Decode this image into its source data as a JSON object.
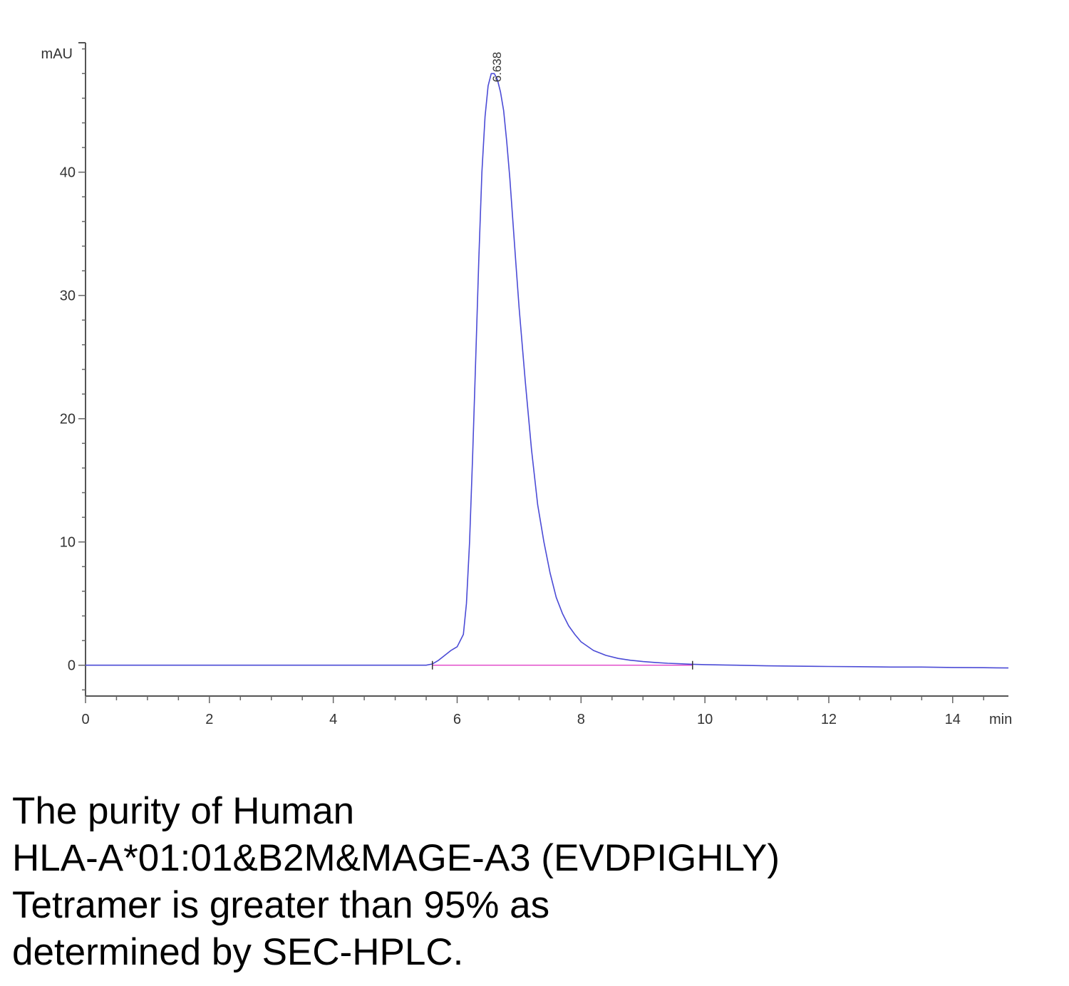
{
  "chart_data": {
    "type": "line",
    "title": "",
    "xlabel": "",
    "ylabel": "",
    "x_unit": "min",
    "y_unit": "mAU",
    "xlim": [
      0,
      14.9
    ],
    "ylim": [
      -2.5,
      50.5
    ],
    "x_ticks": [
      0,
      2,
      4,
      6,
      8,
      10,
      12,
      14
    ],
    "y_ticks": [
      0,
      10,
      20,
      30,
      40
    ],
    "grid": false,
    "legend": "none",
    "peak_annotation": {
      "x": 6.638,
      "label": "6.638"
    },
    "series": [
      {
        "color": "#4b4bd6",
        "x": [
          0,
          1,
          2,
          3,
          4,
          5,
          5.5,
          5.6,
          5.7,
          5.8,
          5.9,
          6.0,
          6.1,
          6.15,
          6.2,
          6.25,
          6.3,
          6.35,
          6.4,
          6.45,
          6.5,
          6.55,
          6.6,
          6.65,
          6.7,
          6.75,
          6.8,
          6.85,
          6.9,
          6.95,
          7.0,
          7.1,
          7.2,
          7.3,
          7.4,
          7.5,
          7.6,
          7.7,
          7.8,
          7.9,
          8.0,
          8.2,
          8.4,
          8.6,
          8.8,
          9.0,
          9.2,
          9.4,
          9.6,
          9.8,
          10.0,
          10.5,
          11.0,
          11.5,
          12.0,
          12.5,
          13.0,
          13.5,
          14.0,
          14.5,
          14.9
        ],
        "y": [
          0,
          0,
          0,
          0,
          0,
          0,
          0,
          0.1,
          0.4,
          0.8,
          1.2,
          1.5,
          2.5,
          5,
          10,
          17,
          25,
          33,
          40,
          44.5,
          47,
          48,
          48,
          47.5,
          46.5,
          45,
          42.5,
          39.5,
          36,
          32.5,
          29,
          23,
          17.5,
          13,
          10,
          7.5,
          5.5,
          4.2,
          3.2,
          2.5,
          1.9,
          1.2,
          0.8,
          0.55,
          0.4,
          0.3,
          0.22,
          0.16,
          0.12,
          0.08,
          0.05,
          0,
          -0.05,
          -0.08,
          -0.1,
          -0.12,
          -0.15,
          -0.15,
          -0.18,
          -0.2,
          -0.22
        ]
      },
      {
        "color": "#e040c8",
        "x": [
          5.6,
          9.8
        ],
        "y": [
          0,
          0
        ]
      }
    ]
  },
  "caption": {
    "lines": [
      "The purity of Human",
      "HLA-A*01:01&B2M&MAGE-A3 (EVDPIGHLY)",
      "Tetramer is greater than 95% as",
      "determined by SEC-HPLC."
    ]
  }
}
